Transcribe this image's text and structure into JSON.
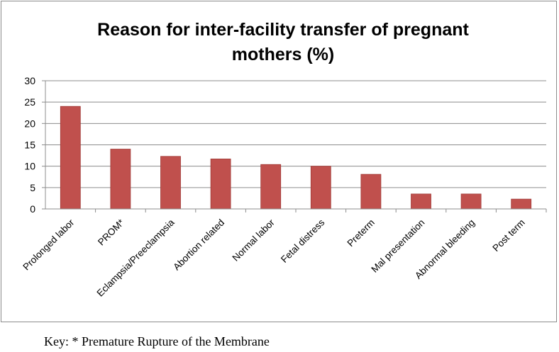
{
  "chart_data": {
    "type": "bar",
    "title_lines": [
      "Reason for inter-facility transfer of pregnant",
      "mothers (%)"
    ],
    "categories": [
      "Prolonged labor",
      "PROM*",
      "Eclampsia/Preeclampsia",
      "Abortion related",
      "Normal labor",
      "Fetal distress",
      "Preterm",
      "Mal presentation",
      "Abnormal bleeding",
      "Post term"
    ],
    "values": [
      24,
      14,
      12.3,
      11.7,
      10.4,
      10,
      8.1,
      3.5,
      3.5,
      2.3
    ],
    "xlabel": "",
    "ylabel": "",
    "ylim": [
      0,
      30
    ],
    "yticks": [
      0,
      5,
      10,
      15,
      20,
      25,
      30
    ],
    "grid": true,
    "legend": "none",
    "bar_color": "#c0504d",
    "bar_edge_color": "#a03a37"
  },
  "footnote": "Key: * Premature Rupture of the Membrane"
}
